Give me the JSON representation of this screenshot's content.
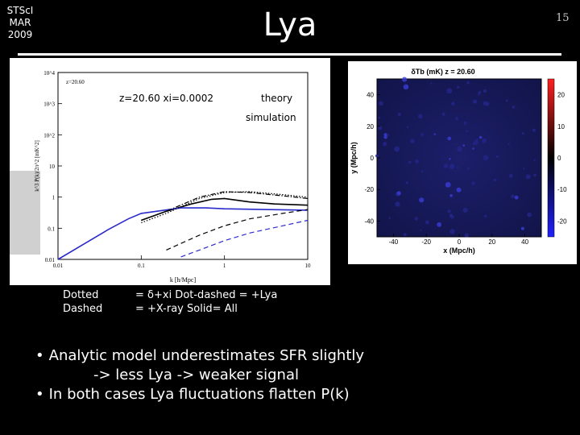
{
  "slide": {
    "corner_lines": [
      "STScI",
      "MAR",
      "2009"
    ],
    "title": "Lya",
    "page_number": "15"
  },
  "left_panel": {
    "overlay_label": "z=20.60 xi=0.0002",
    "overlay_theory": "theory",
    "overlay_simulation": "simulation",
    "figure_label": "z=20.60",
    "ylabel": "k^3 P(k)/2π^2 [mK^2]",
    "xlabel": "k [h/Mpc]",
    "yticks": [
      "10^4",
      "10^3",
      "10^2",
      "10",
      "1",
      "0.1",
      "0.01"
    ],
    "xticks": [
      "0.01",
      "0.1",
      "1",
      "10"
    ]
  },
  "right_panel": {
    "title": "δTb (mK) z = 20.60",
    "xlabel": "x (Mpc/h)",
    "ylabel": "y (Mpc/h)",
    "xticks": [
      "-40",
      "-20",
      "0",
      "20",
      "40"
    ],
    "yticks": [
      "40",
      "20",
      "0",
      "-20",
      "-40"
    ],
    "colorbar_ticks": [
      "20",
      "10",
      "0",
      "-10",
      "-20"
    ]
  },
  "notes": {
    "left_lines": [
      "Dotted",
      "Dashed"
    ],
    "right_lines": [
      "= δ+xi   Dot-dashed = +Lya",
      "= +X-ray Solid= All"
    ]
  },
  "bullets": {
    "b1_line1": "Analytic model underestimates SFR slightly",
    "b1_line2": "-> less Lya -> weaker signal",
    "b2": "In both cases Lya fluctuations flatten P(k)"
  },
  "chart_data": [
    {
      "type": "line",
      "xscale": "log",
      "yscale": "log",
      "xlim": [
        0.01,
        10
      ],
      "ylim": [
        0.01,
        10000
      ],
      "xlabel": "k [h/Mpc]",
      "ylabel": "k^3 P(k)/2π^2 [mK^2]",
      "series": [
        {
          "style": "solid",
          "color": "#000000",
          "x": [
            0.1,
            0.2,
            0.4,
            0.7,
            1.0,
            2.0,
            4.0,
            10.0
          ],
          "y": [
            0.18,
            0.35,
            0.6,
            0.85,
            0.9,
            0.7,
            0.6,
            0.55
          ]
        },
        {
          "style": "solid",
          "color": "#2a2acc",
          "x": [
            0.01,
            0.02,
            0.04,
            0.07,
            0.1,
            0.3,
            0.6,
            1.0,
            3.0,
            10.0
          ],
          "y": [
            0.01,
            0.03,
            0.09,
            0.2,
            0.3,
            0.45,
            0.45,
            0.42,
            0.4,
            0.38
          ]
        },
        {
          "style": "dotted",
          "color": "#000000",
          "x": [
            0.1,
            0.2,
            0.5,
            1.0,
            2.0,
            5.0,
            10.0
          ],
          "y": [
            0.15,
            0.3,
            0.9,
            1.4,
            1.5,
            1.2,
            1.0
          ]
        },
        {
          "style": "dot-dashed",
          "color": "#000000",
          "x": [
            0.1,
            0.2,
            0.5,
            1.0,
            2.0,
            5.0,
            10.0
          ],
          "y": [
            0.18,
            0.35,
            1.0,
            1.5,
            1.4,
            1.1,
            0.9
          ]
        },
        {
          "style": "dashed",
          "color": "#2a2acc",
          "x": [
            0.3,
            0.5,
            1.0,
            2.0,
            5.0,
            10.0
          ],
          "y": [
            0.012,
            0.02,
            0.04,
            0.07,
            0.12,
            0.18
          ]
        },
        {
          "style": "dashed",
          "color": "#000000",
          "x": [
            0.2,
            0.5,
            1.0,
            2.0,
            5.0,
            10.0
          ],
          "y": [
            0.02,
            0.06,
            0.12,
            0.2,
            0.3,
            0.4
          ]
        }
      ]
    },
    {
      "type": "heatmap",
      "title": "δTb (mK) z = 20.60",
      "xlabel": "x (Mpc/h)",
      "ylabel": "y (Mpc/h)",
      "xlim": [
        -50,
        50
      ],
      "ylim": [
        -50,
        50
      ],
      "clim": [
        -25,
        25
      ],
      "colormap": "blue-black-red"
    }
  ]
}
